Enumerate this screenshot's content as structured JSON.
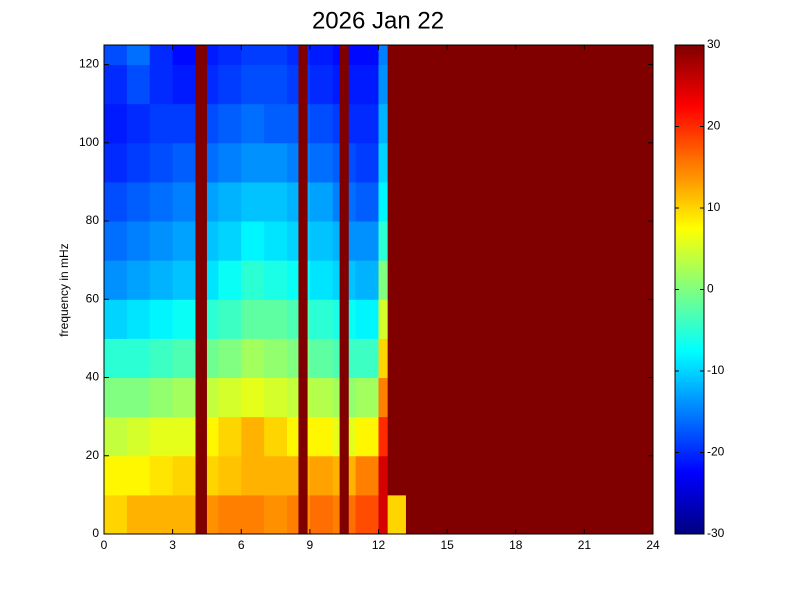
{
  "chart_data": {
    "type": "heatmap",
    "title": "2026 Jan 22",
    "ylabel": "frequency in mHz",
    "colormap": "jet",
    "xlim": [
      0,
      24
    ],
    "xticks": [
      0,
      3,
      6,
      9,
      12,
      15,
      18,
      21,
      24
    ],
    "ylim": [
      0,
      125
    ],
    "yticks": [
      0,
      20,
      40,
      60,
      80,
      100,
      120
    ],
    "clim": [
      -30,
      30
    ],
    "cticks": [
      -30,
      -20,
      -10,
      0,
      10,
      20,
      30
    ],
    "x_edges": [
      0,
      1,
      2,
      3,
      4,
      4.5,
      5,
      6,
      7,
      8,
      8.5,
      8.9,
      9,
      10,
      10.3,
      10.7,
      11,
      12,
      12.4,
      13.2,
      24
    ],
    "y_edges": [
      0,
      10,
      20,
      30,
      40,
      50,
      60,
      70,
      80,
      90,
      100,
      110,
      120,
      125
    ],
    "values": [
      [
        10,
        12,
        12,
        12,
        30,
        14,
        15,
        15,
        14,
        15,
        30,
        14,
        16,
        15,
        30,
        16,
        18,
        25,
        10,
        30
      ],
      [
        8,
        8,
        9,
        10,
        30,
        10,
        11,
        12,
        12,
        12,
        30,
        12,
        13,
        12,
        30,
        12,
        15,
        25,
        30,
        30
      ],
      [
        4,
        5,
        6,
        6,
        30,
        8,
        10,
        12,
        10,
        8,
        30,
        8,
        8,
        6,
        30,
        6,
        8,
        20,
        30,
        30
      ],
      [
        0,
        0,
        1,
        2,
        30,
        4,
        5,
        6,
        5,
        4,
        30,
        4,
        3,
        2,
        30,
        1,
        2,
        15,
        30,
        30
      ],
      [
        -5,
        -5,
        -4,
        -3,
        30,
        -1,
        0,
        2,
        1,
        0,
        30,
        0,
        -2,
        -3,
        30,
        -4,
        -4,
        10,
        30,
        30
      ],
      [
        -10,
        -9,
        -8,
        -7,
        30,
        -5,
        -4,
        -2,
        -2,
        -3,
        30,
        -3,
        -5,
        -6,
        30,
        -7,
        -8,
        5,
        30,
        30
      ],
      [
        -14,
        -13,
        -12,
        -11,
        30,
        -9,
        -7,
        -5,
        -6,
        -7,
        30,
        -7,
        -9,
        -10,
        30,
        -11,
        -12,
        0,
        30,
        30
      ],
      [
        -16,
        -15,
        -14,
        -13,
        30,
        -11,
        -10,
        -8,
        -9,
        -10,
        30,
        -10,
        -11,
        -12,
        30,
        -14,
        -14,
        -5,
        30,
        30
      ],
      [
        -18,
        -17,
        -16,
        -15,
        30,
        -13,
        -12,
        -11,
        -11,
        -12,
        30,
        -12,
        -13,
        -15,
        30,
        -16,
        -17,
        -8,
        30,
        30
      ],
      [
        -20,
        -19,
        -18,
        -17,
        30,
        -16,
        -15,
        -14,
        -14,
        -15,
        30,
        -15,
        -16,
        -17,
        30,
        -18,
        -19,
        -10,
        30,
        30
      ],
      [
        -21,
        -20,
        -19,
        -19,
        30,
        -18,
        -17,
        -16,
        -17,
        -17,
        30,
        -17,
        -18,
        -19,
        30,
        -20,
        -20,
        -12,
        30,
        30
      ],
      [
        -20,
        -18,
        -20,
        -21,
        30,
        -20,
        -19,
        -18,
        -18,
        -19,
        30,
        -19,
        -20,
        -21,
        30,
        -21,
        -21,
        -14,
        30,
        30
      ],
      [
        -18,
        -16,
        -20,
        -22,
        30,
        -21,
        -20,
        -19,
        -19,
        -20,
        30,
        -20,
        -21,
        -22,
        30,
        -22,
        -22,
        -15,
        30,
        30
      ]
    ]
  }
}
